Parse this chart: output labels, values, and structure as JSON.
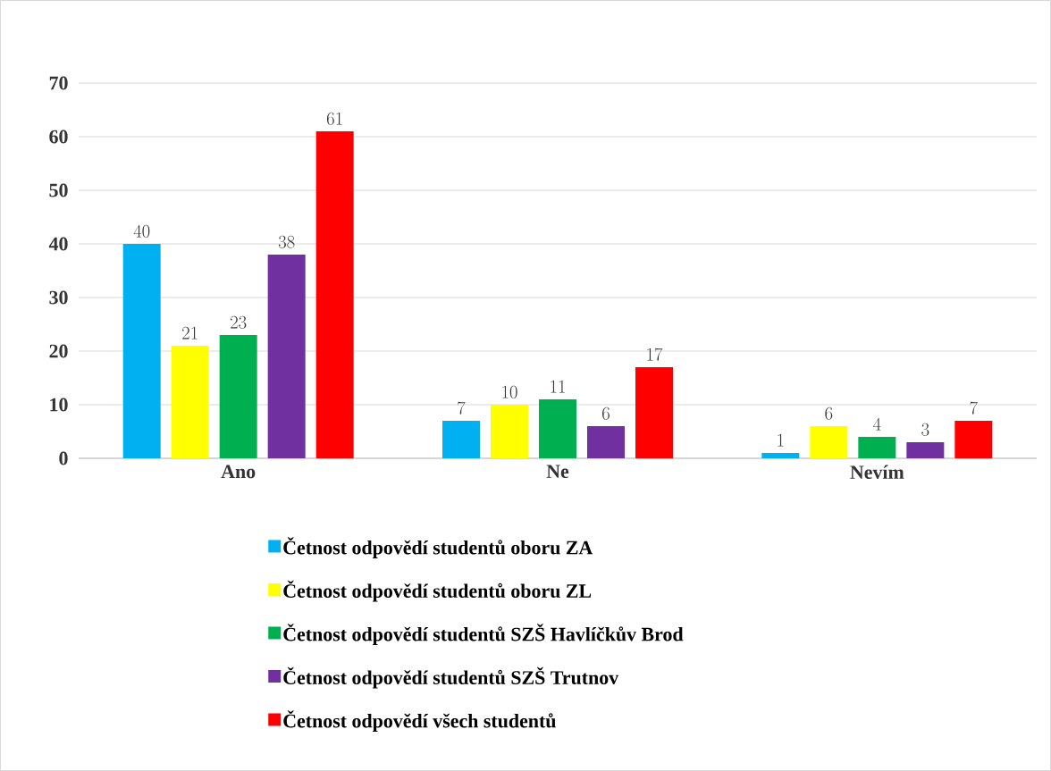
{
  "chart_data": {
    "type": "bar",
    "categories": [
      "Ano",
      "Ne",
      "Nevím"
    ],
    "series": [
      {
        "name": "Četnost odpovědí studentů oboru ZA",
        "color": "#00b0f0",
        "values": [
          40,
          7,
          1
        ]
      },
      {
        "name": "Četnost odpovědí studentů oboru ZL",
        "color": "#ffff00",
        "values": [
          21,
          10,
          6
        ]
      },
      {
        "name": "Četnost odpovědí studentů SZŠ Havlíčkův Brod",
        "color": "#00b050",
        "values": [
          23,
          11,
          4
        ]
      },
      {
        "name": "Četnost odpovědí studentů SZŠ Trutnov",
        "color": "#7030a0",
        "values": [
          38,
          6,
          3
        ]
      },
      {
        "name": "Četnost odpovědí všech studentů",
        "color": "#ff0000",
        "values": [
          61,
          17,
          7
        ]
      }
    ],
    "ylim": [
      0,
      70
    ],
    "yticks": [
      0,
      10,
      20,
      30,
      40,
      50,
      60,
      70
    ],
    "grid": "y",
    "legend": "bottom",
    "data_labels": true
  }
}
